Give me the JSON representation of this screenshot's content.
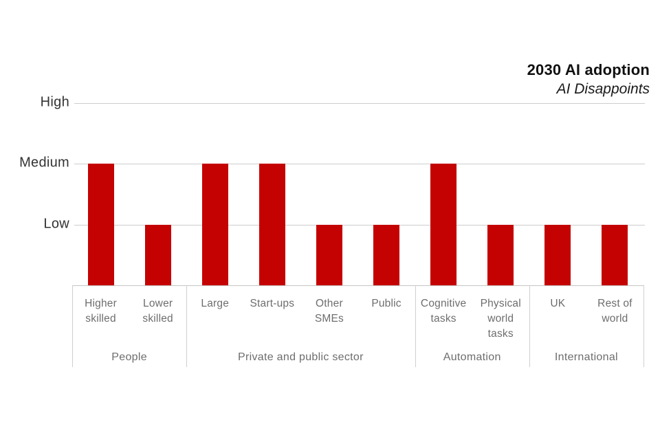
{
  "header": {
    "title": "2030 AI adoption",
    "subtitle": "AI Disappoints"
  },
  "colors": {
    "background": "#FFFFFF",
    "bar": "#C40202",
    "gridline": "#CDCDCD",
    "axis_line": "#C4C4C4",
    "divider": "#CFCFCF",
    "y_label": "#333333",
    "category_label": "#6D6D6D",
    "group_label": "#6D6D6D",
    "title": "#111111"
  },
  "chart_data": {
    "type": "bar",
    "title": "2030 AI adoption",
    "subtitle": "AI Disappoints",
    "xlabel": "",
    "ylabel": "",
    "ylim": [
      0,
      3
    ],
    "grid": true,
    "legend": null,
    "value_scale": {
      "Low": 1,
      "Medium": 2,
      "High": 3
    },
    "y_ticks": [
      {
        "label": "High",
        "value": 3
      },
      {
        "label": "Medium",
        "value": 2
      },
      {
        "label": "Low",
        "value": 1
      }
    ],
    "groups": [
      {
        "label": "People",
        "bars": [
          {
            "label": "Higher skilled",
            "level": "Medium",
            "value": 2
          },
          {
            "label": "Lower skilled",
            "level": "Low",
            "value": 1
          }
        ]
      },
      {
        "label": "Private and public sector",
        "bars": [
          {
            "label": "Large",
            "level": "Medium",
            "value": 2
          },
          {
            "label": "Start-ups",
            "level": "Medium",
            "value": 2
          },
          {
            "label": "Other SMEs",
            "level": "Low",
            "value": 1
          },
          {
            "label": "Public",
            "level": "Low",
            "value": 1
          }
        ]
      },
      {
        "label": "Automation",
        "bars": [
          {
            "label": "Cognitive tasks",
            "level": "Medium",
            "value": 2
          },
          {
            "label": "Physical world tasks",
            "level": "Low",
            "value": 1
          }
        ]
      },
      {
        "label": "International",
        "bars": [
          {
            "label": "UK",
            "level": "Low",
            "value": 1
          },
          {
            "label": "Rest of world",
            "level": "Low",
            "value": 1
          }
        ]
      }
    ]
  }
}
